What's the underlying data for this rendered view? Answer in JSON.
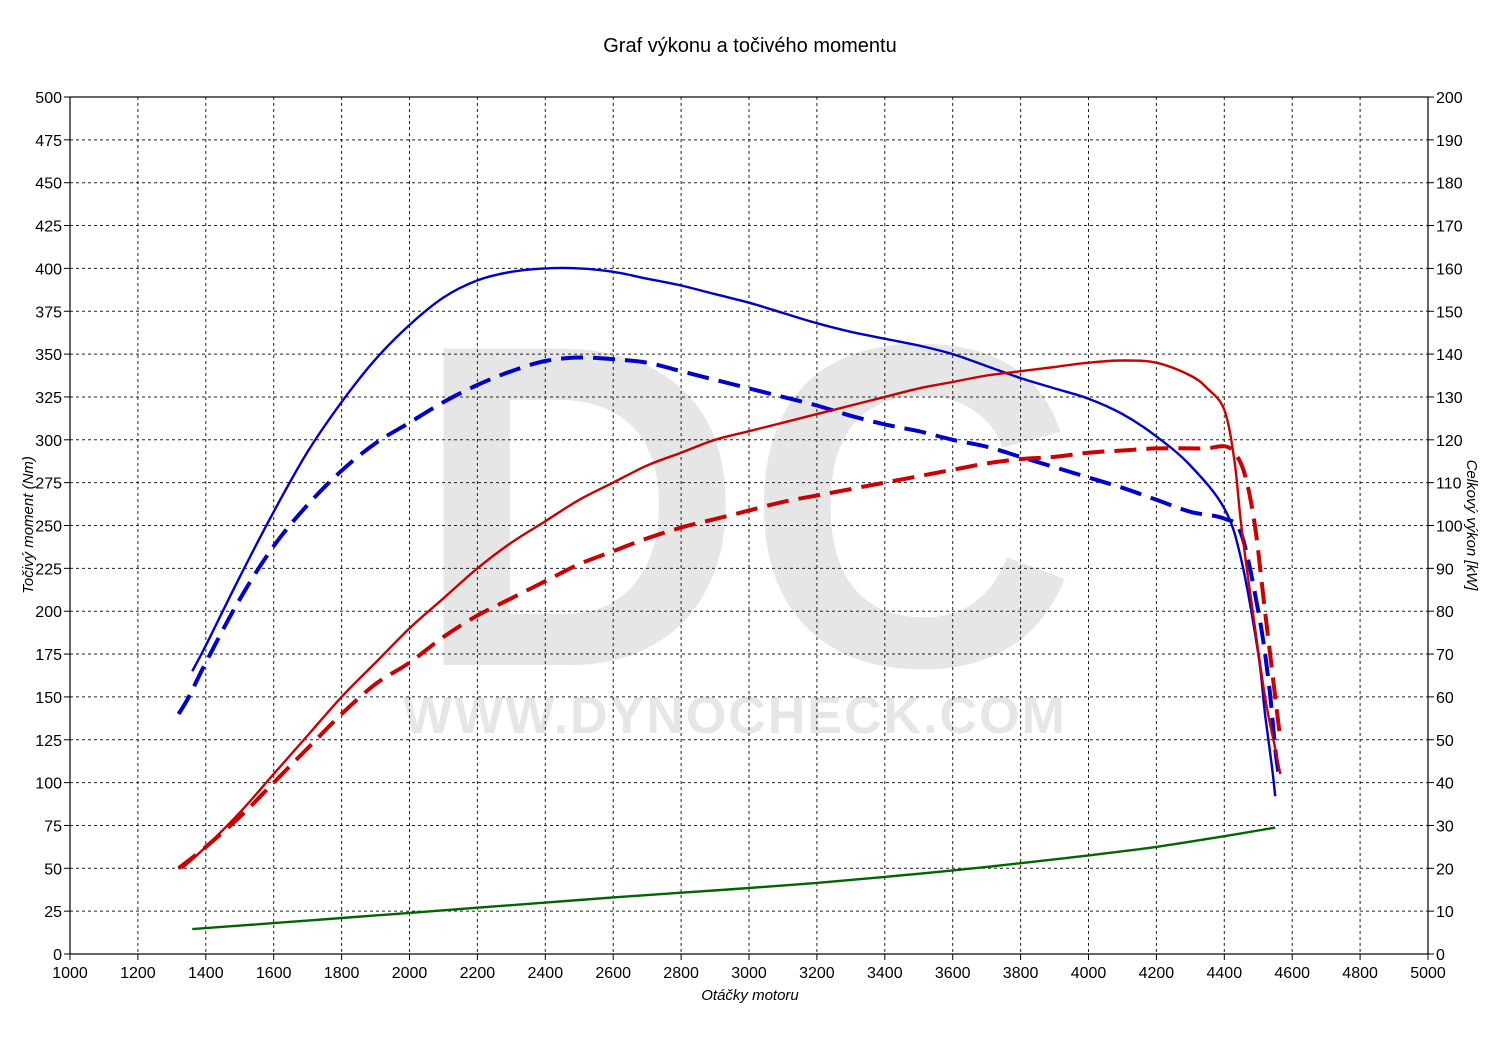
{
  "chart_data": {
    "type": "line",
    "title": "Graf výkonu a točivého momentu",
    "xlabel": "Otáčky motoru",
    "ylabel_left": "Točivý moment (Nm)",
    "ylabel_right": "Celkový výkon [kW]",
    "xlim": [
      1000,
      5000
    ],
    "ylim_left": [
      0,
      500
    ],
    "ylim_right": [
      0,
      200
    ],
    "x_ticks": [
      "1000",
      "1200",
      "1400",
      "1600",
      "1800",
      "2000",
      "2200",
      "2400",
      "2600",
      "2800",
      "3000",
      "3200",
      "3400",
      "3600",
      "3800",
      "4000",
      "4200",
      "4400",
      "4600",
      "4800",
      "5000"
    ],
    "y_left_ticks": [
      "0",
      "25",
      "50",
      "75",
      "100",
      "125",
      "150",
      "175",
      "200",
      "225",
      "250",
      "275",
      "300",
      "325",
      "350",
      "375",
      "400",
      "425",
      "450",
      "475",
      "500"
    ],
    "y_right_ticks": [
      "0",
      "10",
      "20",
      "30",
      "40",
      "50",
      "60",
      "70",
      "80",
      "90",
      "100",
      "110",
      "120",
      "130",
      "140",
      "150",
      "160",
      "170",
      "180",
      "190",
      "200"
    ],
    "grid": true,
    "watermark": {
      "logo": "DC",
      "url": "WWW.DYNOCHECK.COM"
    },
    "series": [
      {
        "color": "#0000cc",
        "dash": "solid",
        "axis": "left",
        "x": [
          1360,
          1400,
          1500,
          1600,
          1700,
          1800,
          1900,
          2000,
          2100,
          2200,
          2300,
          2400,
          2500,
          2600,
          2700,
          2800,
          2900,
          3000,
          3100,
          3200,
          3300,
          3400,
          3500,
          3600,
          3700,
          3800,
          3900,
          4000,
          4100,
          4200,
          4300,
          4400,
          4450,
          4500,
          4520,
          4540,
          4550
        ],
        "y": [
          165,
          180,
          220,
          258,
          293,
          322,
          347,
          367,
          383,
          393,
          398,
          400,
          400,
          398,
          394,
          390,
          385,
          380,
          374,
          368,
          363,
          359,
          355,
          350,
          343,
          336,
          330,
          324,
          315,
          302,
          285,
          260,
          230,
          175,
          140,
          110,
          92
        ]
      },
      {
        "color": "#0000cc",
        "dash": "dashed",
        "axis": "left",
        "x": [
          1320,
          1350,
          1400,
          1500,
          1600,
          1700,
          1800,
          1900,
          2000,
          2100,
          2200,
          2300,
          2400,
          2500,
          2600,
          2700,
          2800,
          2900,
          3000,
          3100,
          3200,
          3300,
          3400,
          3500,
          3600,
          3700,
          3800,
          3900,
          4000,
          4100,
          4200,
          4300,
          4400,
          4450,
          4500,
          4530,
          4550,
          4560
        ],
        "y": [
          140,
          150,
          170,
          207,
          238,
          262,
          282,
          298,
          310,
          322,
          332,
          340,
          346,
          348,
          347,
          345,
          340,
          335,
          330,
          325,
          320,
          314,
          309,
          305,
          300,
          296,
          290,
          284,
          278,
          272,
          265,
          258,
          254,
          245,
          200,
          160,
          120,
          105
        ]
      },
      {
        "color": "#cc0000",
        "dash": "solid",
        "axis": "right",
        "x": [
          1330,
          1400,
          1500,
          1600,
          1700,
          1800,
          1900,
          2000,
          2100,
          2200,
          2300,
          2400,
          2500,
          2600,
          2700,
          2800,
          2900,
          3000,
          3100,
          3200,
          3300,
          3400,
          3500,
          3600,
          3700,
          3800,
          3900,
          4000,
          4100,
          4200,
          4300,
          4350,
          4400,
          4430,
          4450,
          4480,
          4520,
          4550,
          4565
        ],
        "y": [
          20,
          25,
          33,
          42,
          51,
          60,
          68,
          76,
          83,
          90,
          96,
          101,
          106,
          110,
          114,
          117,
          120,
          122,
          124,
          126,
          128,
          130,
          132,
          133.5,
          135,
          136,
          137,
          138,
          138.5,
          138,
          135,
          132,
          127,
          115,
          100,
          82,
          60,
          48,
          42
        ]
      },
      {
        "color": "#cc0000",
        "dash": "dashed",
        "axis": "right",
        "x": [
          1320,
          1400,
          1500,
          1600,
          1700,
          1800,
          1900,
          2000,
          2100,
          2200,
          2300,
          2400,
          2500,
          2600,
          2700,
          2800,
          2900,
          3000,
          3100,
          3200,
          3300,
          3400,
          3500,
          3600,
          3700,
          3800,
          3900,
          4000,
          4100,
          4200,
          4300,
          4350,
          4400,
          4430,
          4460,
          4490,
          4520,
          4550,
          4565
        ],
        "y": [
          20,
          25,
          32,
          40,
          48,
          56,
          63,
          68,
          74,
          79,
          83,
          87,
          91,
          94,
          97,
          99.5,
          101.5,
          103.5,
          105.5,
          107,
          108.5,
          110,
          111.5,
          113,
          114.5,
          115.5,
          116,
          117,
          117.5,
          118,
          118,
          118,
          118.5,
          117,
          112,
          100,
          80,
          60,
          50
        ]
      },
      {
        "color": "#006600",
        "dash": "solid",
        "axis": "right",
        "x": [
          1360,
          1600,
          1800,
          2000,
          2200,
          2400,
          2600,
          2800,
          3000,
          3200,
          3400,
          3600,
          3800,
          4000,
          4200,
          4400,
          4550
        ],
        "y": [
          5.8,
          7.2,
          8.4,
          9.6,
          10.8,
          12.0,
          13.2,
          14.3,
          15.4,
          16.6,
          18.0,
          19.5,
          21.2,
          23.0,
          25.0,
          27.5,
          29.5
        ]
      }
    ]
  }
}
